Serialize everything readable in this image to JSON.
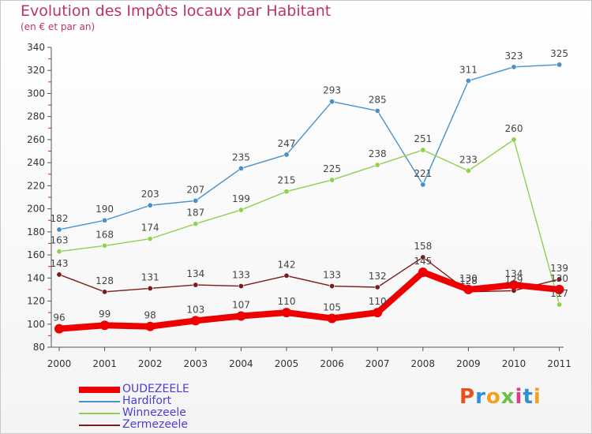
{
  "header": {
    "title": "Evolution des Impôts locaux par Habitant",
    "subtitle": "(en € et par an)"
  },
  "logo": {
    "text": "Proxiti",
    "colors": [
      "#e8501e",
      "#2d8fd6",
      "#f0a020",
      "#6cc04a",
      "#e03a8c",
      "#2d8fd6",
      "#f0a020"
    ]
  },
  "chart_data": {
    "type": "line",
    "x": [
      "2000",
      "2001",
      "2002",
      "2003",
      "2004",
      "2005",
      "2006",
      "2007",
      "2008",
      "2009",
      "2010",
      "2011"
    ],
    "ylim": [
      80,
      340
    ],
    "yticks": [
      80,
      100,
      120,
      140,
      160,
      180,
      200,
      220,
      240,
      260,
      280,
      300,
      320,
      340
    ],
    "grid": false,
    "legend_position": "bottom-left",
    "series": [
      {
        "name": "OUDEZEELE",
        "color": "#ee0000",
        "values": [
          96,
          99,
          98,
          103,
          107,
          110,
          105,
          110,
          145,
          130,
          134,
          130
        ]
      },
      {
        "name": "Hardifort",
        "color": "#4a90c8",
        "values": [
          182,
          190,
          203,
          207,
          235,
          247,
          293,
          285,
          221,
          311,
          323,
          325
        ]
      },
      {
        "name": "Winnezeele",
        "color": "#8fd050",
        "values": [
          163,
          168,
          174,
          187,
          199,
          215,
          225,
          238,
          251,
          233,
          260,
          117
        ]
      },
      {
        "name": "Zermezeele",
        "color": "#7a1c1c",
        "values": [
          143,
          128,
          131,
          134,
          133,
          142,
          133,
          132,
          158,
          128,
          129,
          139
        ]
      }
    ]
  }
}
